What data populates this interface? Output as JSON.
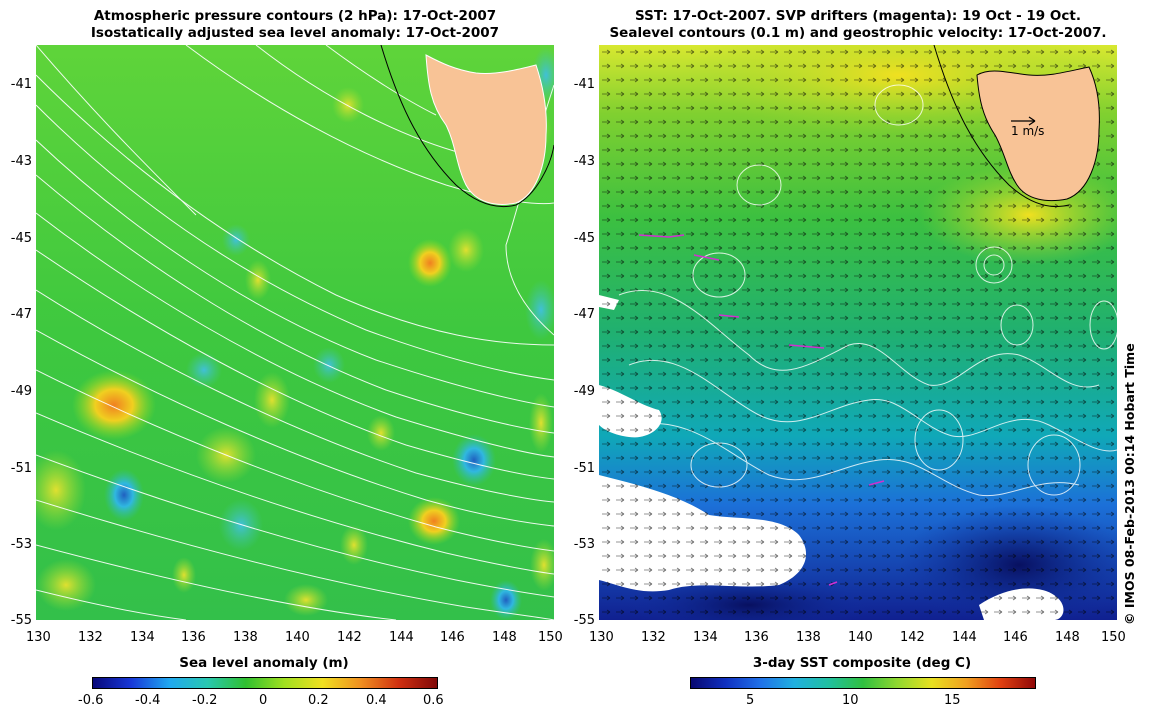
{
  "left_panel": {
    "title_line1": "Atmospheric pressure contours (2 hPa): 17-Oct-2007",
    "title_line2": "Isostatically adjusted sea level anomaly: 17-Oct-2007",
    "x_ticks": [
      "130",
      "132",
      "134",
      "136",
      "138",
      "140",
      "142",
      "144",
      "146",
      "148",
      "150"
    ],
    "y_ticks": [
      "-41",
      "-43",
      "-45",
      "-47",
      "-49",
      "-51",
      "-53",
      "-55"
    ],
    "colorbar_label": "Sea level anomaly (m)",
    "colorbar_ticks": [
      "-0.6",
      "-0.4",
      "-0.2",
      "0",
      "0.2",
      "0.4",
      "0.6"
    ]
  },
  "right_panel": {
    "title_line1": "SST: 17-Oct-2007. SVP drifters (magenta): 19 Oct - 19 Oct.",
    "title_line2": "Sealevel contours (0.1 m) and geostrophic velocity: 17-Oct-2007.",
    "x_ticks": [
      "130",
      "132",
      "134",
      "136",
      "138",
      "140",
      "142",
      "144",
      "146",
      "148",
      "150"
    ],
    "y_ticks": [
      "-41",
      "-43",
      "-45",
      "-47",
      "-49",
      "-51",
      "-53",
      "-55"
    ],
    "velocity_scale_label": "1 m/s",
    "colorbar_label": "3-day SST composite (deg C)",
    "colorbar_ticks": [
      "5",
      "10",
      "15"
    ]
  },
  "credit": "© IMOS 08-Feb-2013 00:14 Hobart Time",
  "colors": {
    "land": "#f8c396",
    "ocean_mid": "#3cc83c",
    "contour": "#ffffff",
    "drifter": "#d030d0"
  }
}
